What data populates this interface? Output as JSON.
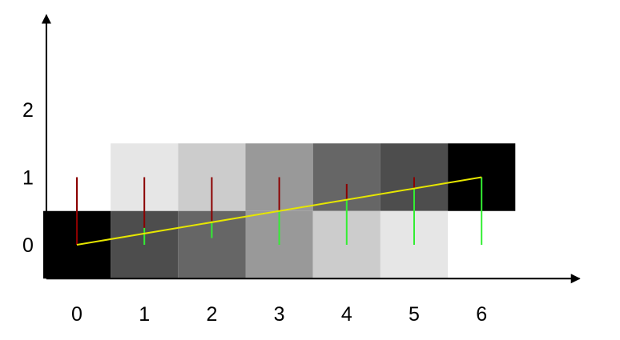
{
  "chart_data": {
    "type": "diagram",
    "x_ticks": [
      "0",
      "1",
      "2",
      "3",
      "4",
      "5",
      "6"
    ],
    "y_ticks": [
      "0",
      "1",
      "2"
    ],
    "x_range": [
      -0.5,
      7.5
    ],
    "y_range": [
      -0.5,
      3.4
    ],
    "upper_cells": [
      {
        "x": 1,
        "color": "#e6e6e6",
        "bottom": 0.5,
        "top": 1.5
      },
      {
        "x": 2,
        "color": "#cccccc",
        "bottom": 0.5,
        "top": 1.5
      },
      {
        "x": 3,
        "color": "#999999",
        "bottom": 0.5,
        "top": 1.5
      },
      {
        "x": 4,
        "color": "#666666",
        "bottom": 0.5,
        "top": 1.5
      },
      {
        "x": 5,
        "color": "#4d4d4d",
        "bottom": 0.5,
        "top": 1.5
      },
      {
        "x": 6,
        "color": "#000000",
        "bottom": 0.5,
        "top": 1.5
      }
    ],
    "lower_cells": [
      {
        "x": 0,
        "color": "#000000",
        "bottom": -0.5,
        "top": 0.5
      },
      {
        "x": 1,
        "color": "#4d4d4d",
        "bottom": -0.5,
        "top": 0.5
      },
      {
        "x": 2,
        "color": "#666666",
        "bottom": -0.5,
        "top": 0.5
      },
      {
        "x": 3,
        "color": "#999999",
        "bottom": -0.5,
        "top": 0.5
      },
      {
        "x": 4,
        "color": "#cccccc",
        "bottom": -0.5,
        "top": 0.5
      },
      {
        "x": 5,
        "color": "#e6e6e6",
        "bottom": -0.5,
        "top": 0.5
      }
    ],
    "line": {
      "x": [
        0,
        6
      ],
      "y": [
        0,
        1
      ],
      "color": "#e6e600"
    },
    "red_segments": [
      {
        "x": 0,
        "from": 0,
        "to": 1
      },
      {
        "x": 1,
        "from": 0.1667,
        "to": 1
      },
      {
        "x": 2,
        "from": 0.3333,
        "to": 1
      },
      {
        "x": 3,
        "from": 0.5,
        "to": 1
      },
      {
        "x": 4,
        "from": 0.6667,
        "to": 0.9
      },
      {
        "x": 5,
        "from": 0.8333,
        "to": 1
      }
    ],
    "green_segments": [
      {
        "x": 1,
        "from": 0,
        "to": 0.25
      },
      {
        "x": 2,
        "from": 0.1,
        "to": 0.35
      },
      {
        "x": 3,
        "from": 0,
        "to": 0.5
      },
      {
        "x": 4,
        "from": 0,
        "to": 0.6667
      },
      {
        "x": 5,
        "from": 0,
        "to": 0.8333
      },
      {
        "x": 6,
        "from": 0,
        "to": 1
      }
    ],
    "colors": {
      "axis": "#000000",
      "red": "#8b0000",
      "green": "#33ee33",
      "yellow": "#e6e600"
    }
  }
}
